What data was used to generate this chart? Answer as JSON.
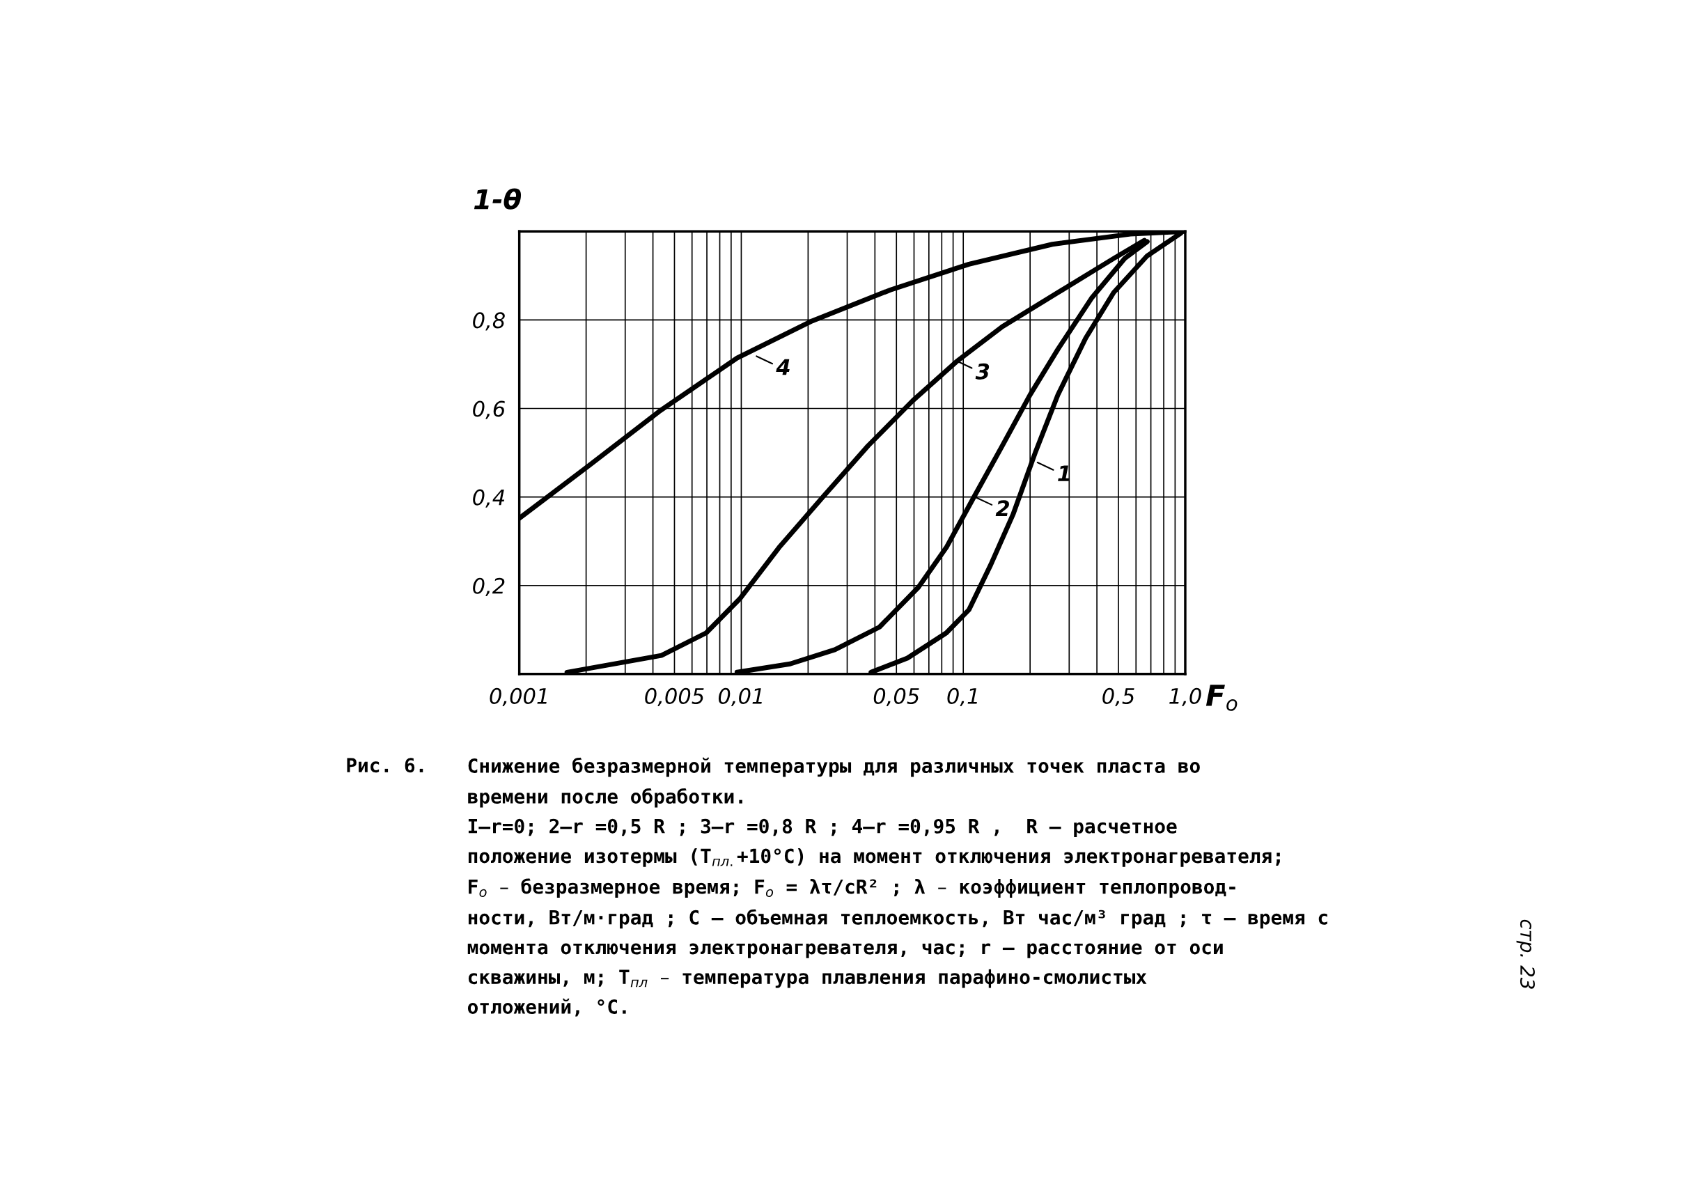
{
  "chart_data": {
    "type": "line",
    "ylabel": "1-θ",
    "xlabel": "F$_{o}$",
    "log": "x",
    "grid": true,
    "line_style": "solid",
    "marker": "none",
    "xlim": [
      0.001,
      1.0
    ],
    "ylim": [
      0,
      1
    ],
    "xticks": [
      {
        "value": 0.001,
        "label": "0,001"
      },
      {
        "value": 0.002,
        "label": null
      },
      {
        "value": 0.003,
        "label": null
      },
      {
        "value": 0.004,
        "label": null
      },
      {
        "value": 0.005,
        "label": "0,005"
      },
      {
        "value": 0.006,
        "label": null
      },
      {
        "value": 0.007,
        "label": null
      },
      {
        "value": 0.008,
        "label": null
      },
      {
        "value": 0.009,
        "label": null
      },
      {
        "value": 0.01,
        "label": "0,01"
      },
      {
        "value": 0.02,
        "label": null
      },
      {
        "value": 0.03,
        "label": null
      },
      {
        "value": 0.04,
        "label": null
      },
      {
        "value": 0.05,
        "label": "0,05"
      },
      {
        "value": 0.06,
        "label": null
      },
      {
        "value": 0.07,
        "label": null
      },
      {
        "value": 0.08,
        "label": null
      },
      {
        "value": 0.09,
        "label": null
      },
      {
        "value": 0.1,
        "label": "0,1"
      },
      {
        "value": 0.2,
        "label": null
      },
      {
        "value": 0.3,
        "label": null
      },
      {
        "value": 0.4,
        "label": null
      },
      {
        "value": 0.5,
        "label": "0,5"
      },
      {
        "value": 0.6,
        "label": null
      },
      {
        "value": 0.7,
        "label": null
      },
      {
        "value": 0.8,
        "label": null
      },
      {
        "value": 0.9,
        "label": null
      },
      {
        "value": 1.0,
        "label": "1,0"
      }
    ],
    "yticks": [
      {
        "value": 0,
        "label": null
      },
      {
        "value": 0.2,
        "label": "0,2"
      },
      {
        "value": 0.4,
        "label": "0,4"
      },
      {
        "value": 0.6,
        "label": "0,6"
      },
      {
        "value": 0.8,
        "label": "0,8"
      },
      {
        "value": 1.0,
        "label": null
      }
    ],
    "series": [
      {
        "color": "#000000",
        "x": [
          0.0384,
          0.056,
          0.0839,
          0.106,
          0.133,
          0.168,
          0.212,
          0.267,
          0.356,
          0.476,
          0.674,
          0.955
        ],
        "values": [
          0.004,
          0.036,
          0.093,
          0.145,
          0.247,
          0.362,
          0.503,
          0.631,
          0.759,
          0.862,
          0.945,
          0.996
        ]
      },
      {
        "color": "#000000",
        "x": [
          0.00957,
          0.0166,
          0.0264,
          0.0419,
          0.0628,
          0.0839,
          0.112,
          0.15,
          0.2,
          0.267,
          0.378,
          0.534,
          0.674
        ],
        "values": [
          0.004,
          0.023,
          0.055,
          0.106,
          0.196,
          0.286,
          0.401,
          0.516,
          0.631,
          0.734,
          0.849,
          0.939,
          0.977
        ]
      },
      {
        "color": "#000000",
        "x": [
          0.00164,
          0.00437,
          0.00695,
          0.00985,
          0.0148,
          0.0234,
          0.0373,
          0.0593,
          0.0943,
          0.15,
          0.267,
          0.476,
          0.655
        ],
        "values": [
          0.004,
          0.042,
          0.093,
          0.17,
          0.286,
          0.401,
          0.516,
          0.618,
          0.708,
          0.785,
          0.862,
          0.939,
          0.98
        ]
      },
      {
        "color": "#000000",
        "x": [
          0.001,
          0.00206,
          0.00426,
          0.00957,
          0.0209,
          0.047,
          0.106,
          0.252,
          0.566,
          1.0
        ],
        "values": [
          0.352,
          0.471,
          0.593,
          0.714,
          0.798,
          0.868,
          0.926,
          0.971,
          0.994,
          1.0
        ]
      }
    ],
    "annotations": [
      {
        "text": "1",
        "x": 0.212,
        "y": 0.48
      },
      {
        "text": "2",
        "x": 0.112,
        "y": 0.401
      },
      {
        "text": "3",
        "x": 0.091,
        "y": 0.71
      },
      {
        "text": "4",
        "x": 0.0115,
        "y": 0.72
      },
      "Рис. 6.",
      "Снижение безразмерной температуры для различных точек пласта во\nвремени после обработки.\nI–r=0; 2–r =0,5 R ; 3–r =0,8 R ; 4–r =0,95 R ,  R – расчетное\nположение изотермы (T$_{пл.}$+10°C) на момент отключения электронагревателя;\nF$_{o}$ – безразмерное время; F$_{o}$ = λτ/cR² ; λ – коэффициент теплопровод-\nности, Вт/м·град ; C – объемная теплоемкость, Вт час/м³ град ; τ – время с\nмомента отключения электронагревателя, час; r – расстояние от оси\nскважины, м; T$_{пл}$ – температура плавления парафино-смолистых\nотложений, °C.",
      "стр. 23"
    ]
  }
}
